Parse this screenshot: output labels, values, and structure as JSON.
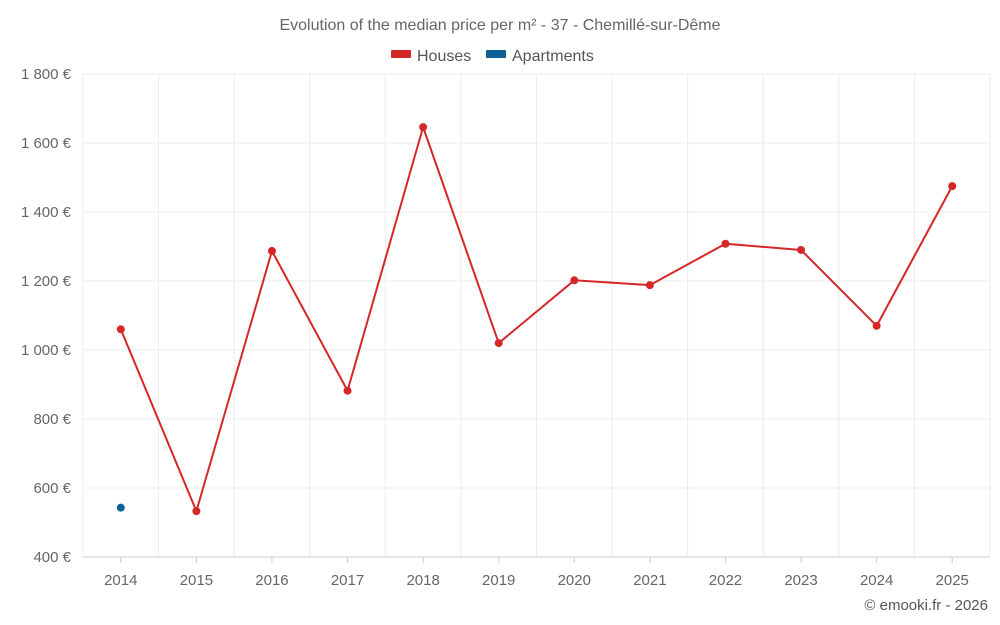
{
  "chart_data": {
    "type": "line",
    "title": "Evolution of the median price per m² - 37 - Chemillé-sur-Dême",
    "categories": [
      "2014",
      "2015",
      "2016",
      "2017",
      "2018",
      "2019",
      "2020",
      "2021",
      "2022",
      "2023",
      "2024",
      "2025"
    ],
    "series": [
      {
        "name": "Houses",
        "color": "#d62728",
        "values": [
          1060,
          533,
          1287,
          882,
          1646,
          1020,
          1202,
          1188,
          1308,
          1290,
          1070,
          1475
        ]
      },
      {
        "name": "Apartments",
        "color": "#0d6197",
        "values": [
          543,
          null,
          null,
          null,
          null,
          null,
          null,
          null,
          null,
          null,
          null,
          null
        ]
      }
    ],
    "ylim": [
      400,
      1800
    ],
    "yticks": [
      400,
      600,
      800,
      1000,
      1200,
      1400,
      1600,
      1800
    ],
    "ytick_labels": [
      "400 €",
      "600 €",
      "800 €",
      "1 000 €",
      "1 200 €",
      "1 400 €",
      "1 600 €",
      "1 800 €"
    ],
    "xlabel": "",
    "ylabel": "",
    "grid": true,
    "legend_position": "top-center",
    "credit": "© emooki.fr - 2026"
  }
}
